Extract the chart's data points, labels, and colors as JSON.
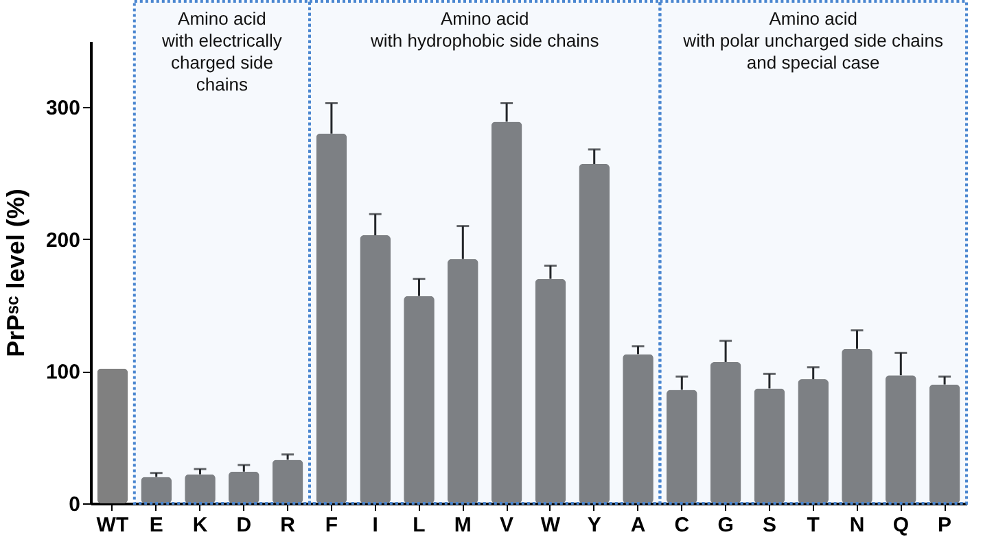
{
  "chart_data": {
    "type": "bar",
    "ylabel": "PrPˢᶜ level (%)",
    "categories": [
      "WT",
      "E",
      "K",
      "D",
      "R",
      "F",
      "I",
      "L",
      "M",
      "V",
      "W",
      "Y",
      "A",
      "C",
      "G",
      "S",
      "T",
      "N",
      "Q",
      "P"
    ],
    "values": [
      102,
      20,
      22,
      24,
      33,
      280,
      203,
      157,
      185,
      289,
      170,
      257,
      113,
      86,
      107,
      87,
      94,
      117,
      97,
      90
    ],
    "errors": [
      null,
      [
        20,
        23
      ],
      [
        22,
        26
      ],
      [
        24,
        29
      ],
      [
        33,
        37
      ],
      [
        280,
        303
      ],
      [
        203,
        219
      ],
      [
        157,
        170
      ],
      [
        185,
        210
      ],
      [
        289,
        303
      ],
      [
        170,
        180
      ],
      [
        257,
        268
      ],
      [
        113,
        119
      ],
      [
        86,
        96
      ],
      [
        107,
        123
      ],
      [
        87,
        98
      ],
      [
        94,
        103
      ],
      [
        117,
        131
      ],
      [
        97,
        114
      ],
      [
        90,
        96
      ]
    ],
    "color": "#808080",
    "ylim": [
      0,
      350
    ],
    "yticks": [
      0,
      100,
      200,
      300
    ],
    "grid": false,
    "bands": [
      {
        "axis": "x",
        "from": "E",
        "to": "R",
        "label": "Amino acid\nwith electrically\ncharged side\nchains",
        "color": "#4a86d0"
      },
      {
        "axis": "x",
        "from": "F",
        "to": "A",
        "label": "Amino acid\nwith hydrophobic side chains",
        "color": "#4a86d0"
      },
      {
        "axis": "x",
        "from": "C",
        "to": "P",
        "label": "Amino acid\nwith polar uncharged side chains\nand special case",
        "color": "#4a86d0"
      }
    ]
  }
}
